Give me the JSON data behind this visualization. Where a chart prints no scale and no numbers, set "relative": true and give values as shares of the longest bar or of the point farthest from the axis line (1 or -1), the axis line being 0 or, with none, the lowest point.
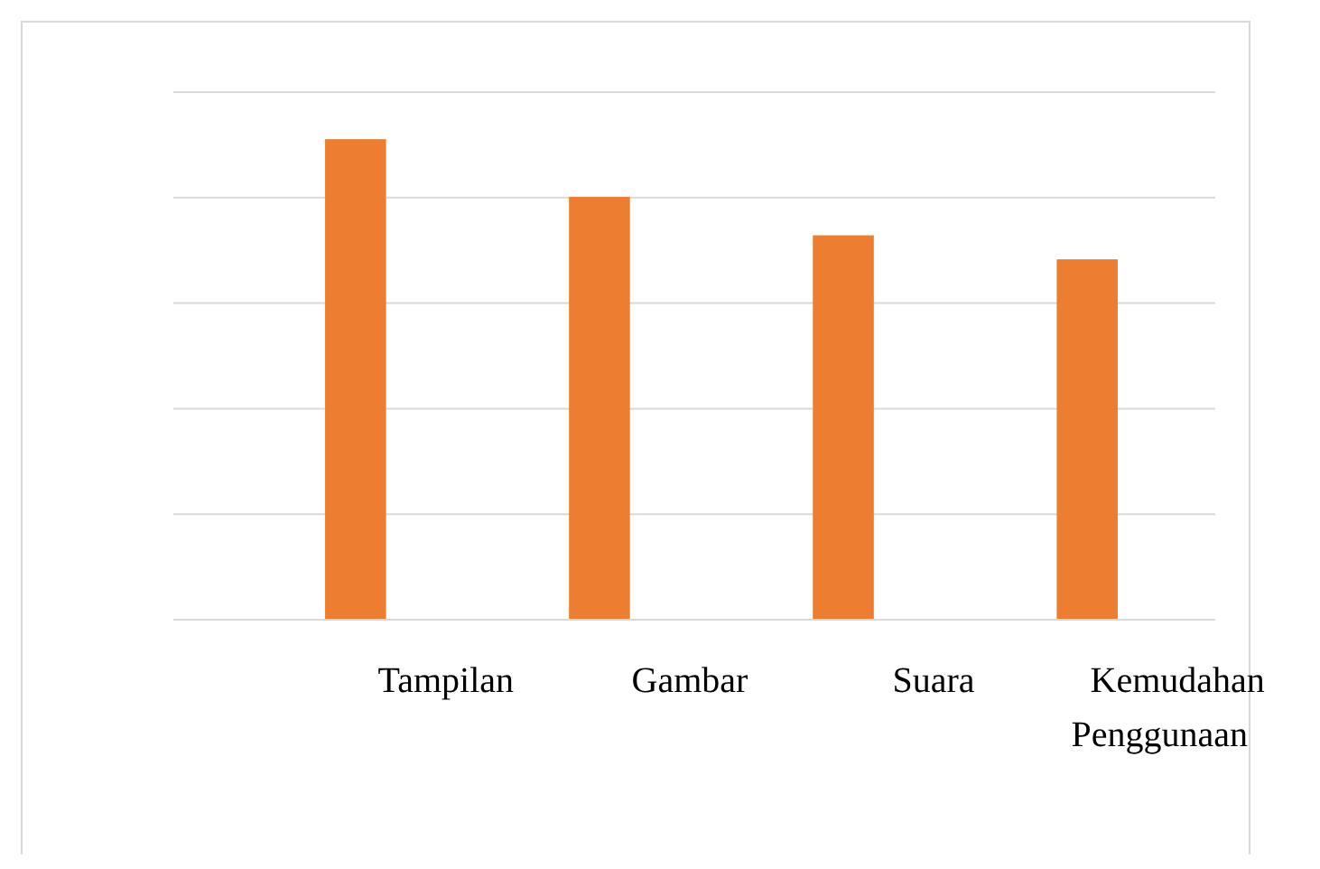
{
  "chart_data": {
    "type": "bar",
    "relative": true,
    "grid": true,
    "categories": [
      "Tampilan",
      "Gambar",
      "Suara",
      "Kemudahan Penggunaan"
    ],
    "values": [
      1,
      0.88,
      0.8,
      0.75
    ],
    "color": "#ed7d31"
  }
}
